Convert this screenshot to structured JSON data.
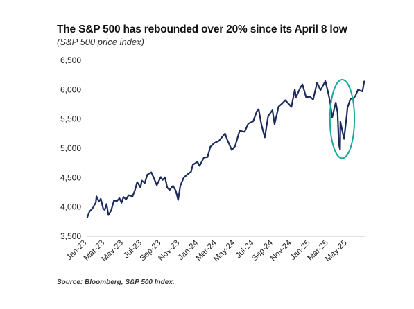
{
  "chart_data": {
    "type": "line",
    "title": "The S&P 500 has rebounded over 20% since its April 8 low",
    "subtitle": "(S&P 500 price index)",
    "source": "Source: Bloomberg, S&P 500 Index.",
    "xlabel": "",
    "ylabel": "",
    "ylim": [
      3500,
      6500
    ],
    "yticks": [
      3500,
      4000,
      4500,
      5000,
      5500,
      6000,
      6500
    ],
    "ytick_labels": [
      "3,500",
      "4,000",
      "4,500",
      "5,000",
      "5,500",
      "6,000",
      "6,500"
    ],
    "xticks": [
      "2023-01-01",
      "2023-03-01",
      "2023-05-01",
      "2023-07-01",
      "2023-09-01",
      "2023-11-01",
      "2024-01-01",
      "2024-03-01",
      "2024-05-01",
      "2024-07-01",
      "2024-09-01",
      "2024-11-01",
      "2025-01-01",
      "2025-03-01",
      "2025-05-01"
    ],
    "xtick_labels": [
      "Jan-23",
      "Mar-23",
      "May-23",
      "Jul-23",
      "Sep-23",
      "Nov-23",
      "Jan-24",
      "Mar-24",
      "May-24",
      "Jul-24",
      "Sep-24",
      "Nov-24",
      "Jan-25",
      "Mar-25",
      "May-25"
    ],
    "xlim": [
      "2023-01-01",
      "2025-06-30"
    ],
    "grid": false,
    "line_color": "#1b2a5c",
    "highlight_color": "#1aa89a",
    "highlight_circle": {
      "center": [
        "2025-04-15",
        5500
      ],
      "radius_days": 40,
      "radius_value": 670
    },
    "series": [
      {
        "values": [
          [
            "2023-01-03",
            3825
          ],
          [
            "2023-01-10",
            3920
          ],
          [
            "2023-01-20",
            3975
          ],
          [
            "2023-01-31",
            4075
          ],
          [
            "2023-02-02",
            4180
          ],
          [
            "2023-02-10",
            4090
          ],
          [
            "2023-02-16",
            4140
          ],
          [
            "2023-02-24",
            3970
          ],
          [
            "2023-03-01",
            3950
          ],
          [
            "2023-03-07",
            4050
          ],
          [
            "2023-03-13",
            3860
          ],
          [
            "2023-03-22",
            3940
          ],
          [
            "2023-03-31",
            4110
          ],
          [
            "2023-04-10",
            4100
          ],
          [
            "2023-04-18",
            4150
          ],
          [
            "2023-04-25",
            4070
          ],
          [
            "2023-05-01",
            4170
          ],
          [
            "2023-05-10",
            4130
          ],
          [
            "2023-05-18",
            4200
          ],
          [
            "2023-05-31",
            4180
          ],
          [
            "2023-06-08",
            4290
          ],
          [
            "2023-06-15",
            4425
          ],
          [
            "2023-06-26",
            4330
          ],
          [
            "2023-06-30",
            4450
          ],
          [
            "2023-07-10",
            4410
          ],
          [
            "2023-07-18",
            4550
          ],
          [
            "2023-07-31",
            4590
          ],
          [
            "2023-08-08",
            4500
          ],
          [
            "2023-08-18",
            4370
          ],
          [
            "2023-08-31",
            4510
          ],
          [
            "2023-09-06",
            4460
          ],
          [
            "2023-09-14",
            4505
          ],
          [
            "2023-09-21",
            4330
          ],
          [
            "2023-09-29",
            4290
          ],
          [
            "2023-10-10",
            4360
          ],
          [
            "2023-10-19",
            4280
          ],
          [
            "2023-10-27",
            4120
          ],
          [
            "2023-11-03",
            4360
          ],
          [
            "2023-11-14",
            4500
          ],
          [
            "2023-11-30",
            4570
          ],
          [
            "2023-12-08",
            4600
          ],
          [
            "2023-12-14",
            4720
          ],
          [
            "2023-12-29",
            4770
          ],
          [
            "2024-01-05",
            4700
          ],
          [
            "2024-01-19",
            4840
          ],
          [
            "2024-01-31",
            4850
          ],
          [
            "2024-02-09",
            5025
          ],
          [
            "2024-02-22",
            5090
          ],
          [
            "2024-03-08",
            5125
          ],
          [
            "2024-03-28",
            5250
          ],
          [
            "2024-04-04",
            5150
          ],
          [
            "2024-04-19",
            4970
          ],
          [
            "2024-04-30",
            5035
          ],
          [
            "2024-05-15",
            5300
          ],
          [
            "2024-05-31",
            5280
          ],
          [
            "2024-06-12",
            5420
          ],
          [
            "2024-06-28",
            5460
          ],
          [
            "2024-07-10",
            5630
          ],
          [
            "2024-07-16",
            5665
          ],
          [
            "2024-07-25",
            5400
          ],
          [
            "2024-08-05",
            5185
          ],
          [
            "2024-08-16",
            5550
          ],
          [
            "2024-08-30",
            5650
          ],
          [
            "2024-09-06",
            5410
          ],
          [
            "2024-09-19",
            5710
          ],
          [
            "2024-09-30",
            5760
          ],
          [
            "2024-10-11",
            5820
          ],
          [
            "2024-10-31",
            5705
          ],
          [
            "2024-11-11",
            6000
          ],
          [
            "2024-11-15",
            5870
          ],
          [
            "2024-11-29",
            6030
          ],
          [
            "2024-12-06",
            6090
          ],
          [
            "2024-12-18",
            5870
          ],
          [
            "2024-12-31",
            5880
          ],
          [
            "2025-01-10",
            5830
          ],
          [
            "2025-01-23",
            6120
          ],
          [
            "2025-02-03",
            5990
          ],
          [
            "2025-02-19",
            6145
          ],
          [
            "2025-02-28",
            5950
          ],
          [
            "2025-03-07",
            5770
          ],
          [
            "2025-03-13",
            5520
          ],
          [
            "2025-03-25",
            5780
          ],
          [
            "2025-03-31",
            5610
          ],
          [
            "2025-04-04",
            5070
          ],
          [
            "2025-04-08",
            4980
          ],
          [
            "2025-04-09",
            5455
          ],
          [
            "2025-04-21",
            5160
          ],
          [
            "2025-04-30",
            5570
          ],
          [
            "2025-05-02",
            5690
          ],
          [
            "2025-05-12",
            5845
          ],
          [
            "2025-05-21",
            5845
          ],
          [
            "2025-05-28",
            5890
          ],
          [
            "2025-06-06",
            6000
          ],
          [
            "2025-06-13",
            5980
          ],
          [
            "2025-06-20",
            5970
          ],
          [
            "2025-06-26",
            6140
          ]
        ]
      }
    ]
  }
}
